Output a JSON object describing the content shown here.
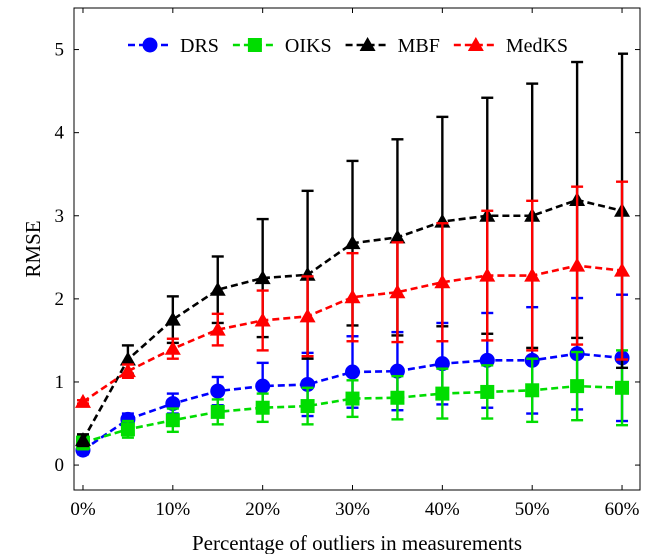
{
  "chart_data": {
    "type": "line",
    "xlabel": "Percentage of outliers in measurements",
    "ylabel": "RMSE",
    "x": [
      0,
      5,
      10,
      15,
      20,
      25,
      30,
      35,
      40,
      45,
      50,
      55,
      60
    ],
    "x_ticks": [
      "0%",
      "10%",
      "20%",
      "30%",
      "40%",
      "50%",
      "60%"
    ],
    "y_ticks": [
      "0",
      "1",
      "2",
      "3",
      "4",
      "5"
    ],
    "xlim": [
      -1,
      62
    ],
    "ylim": [
      -0.3,
      5.5
    ],
    "grid": false,
    "legend_position": "top",
    "series": [
      {
        "name": "DRS",
        "color": "#0000ff",
        "marker": "circle",
        "values": [
          0.18,
          0.55,
          0.74,
          0.89,
          0.95,
          0.97,
          1.12,
          1.13,
          1.22,
          1.26,
          1.26,
          1.34,
          1.29
        ],
        "error": [
          0.05,
          0.07,
          0.12,
          0.17,
          0.28,
          0.38,
          0.43,
          0.47,
          0.49,
          0.57,
          0.64,
          0.67,
          0.76
        ]
      },
      {
        "name": "OIKS",
        "color": "#00dd00",
        "marker": "square",
        "values": [
          0.27,
          0.43,
          0.54,
          0.64,
          0.69,
          0.71,
          0.8,
          0.81,
          0.86,
          0.88,
          0.9,
          0.95,
          0.93
        ],
        "error": [
          0.08,
          0.1,
          0.14,
          0.15,
          0.17,
          0.22,
          0.22,
          0.26,
          0.3,
          0.32,
          0.38,
          0.41,
          0.45
        ]
      },
      {
        "name": "MBF",
        "color": "#000000",
        "marker": "triangle",
        "values": [
          0.3,
          1.27,
          1.75,
          2.11,
          2.25,
          2.29,
          2.67,
          2.74,
          2.93,
          3.0,
          3.0,
          3.19,
          3.06
        ],
        "error": [
          0.07,
          0.17,
          0.28,
          0.4,
          0.71,
          1.01,
          0.99,
          1.18,
          1.26,
          1.42,
          1.59,
          1.66,
          1.89
        ]
      },
      {
        "name": "MedKS",
        "color": "#ff0000",
        "marker": "triangle",
        "values": [
          0.76,
          1.13,
          1.4,
          1.63,
          1.74,
          1.79,
          2.02,
          2.08,
          2.2,
          2.28,
          2.28,
          2.4,
          2.34
        ],
        "error": [
          0.02,
          0.08,
          0.12,
          0.19,
          0.36,
          0.48,
          0.53,
          0.6,
          0.71,
          0.78,
          0.9,
          0.95,
          1.07
        ]
      }
    ]
  }
}
